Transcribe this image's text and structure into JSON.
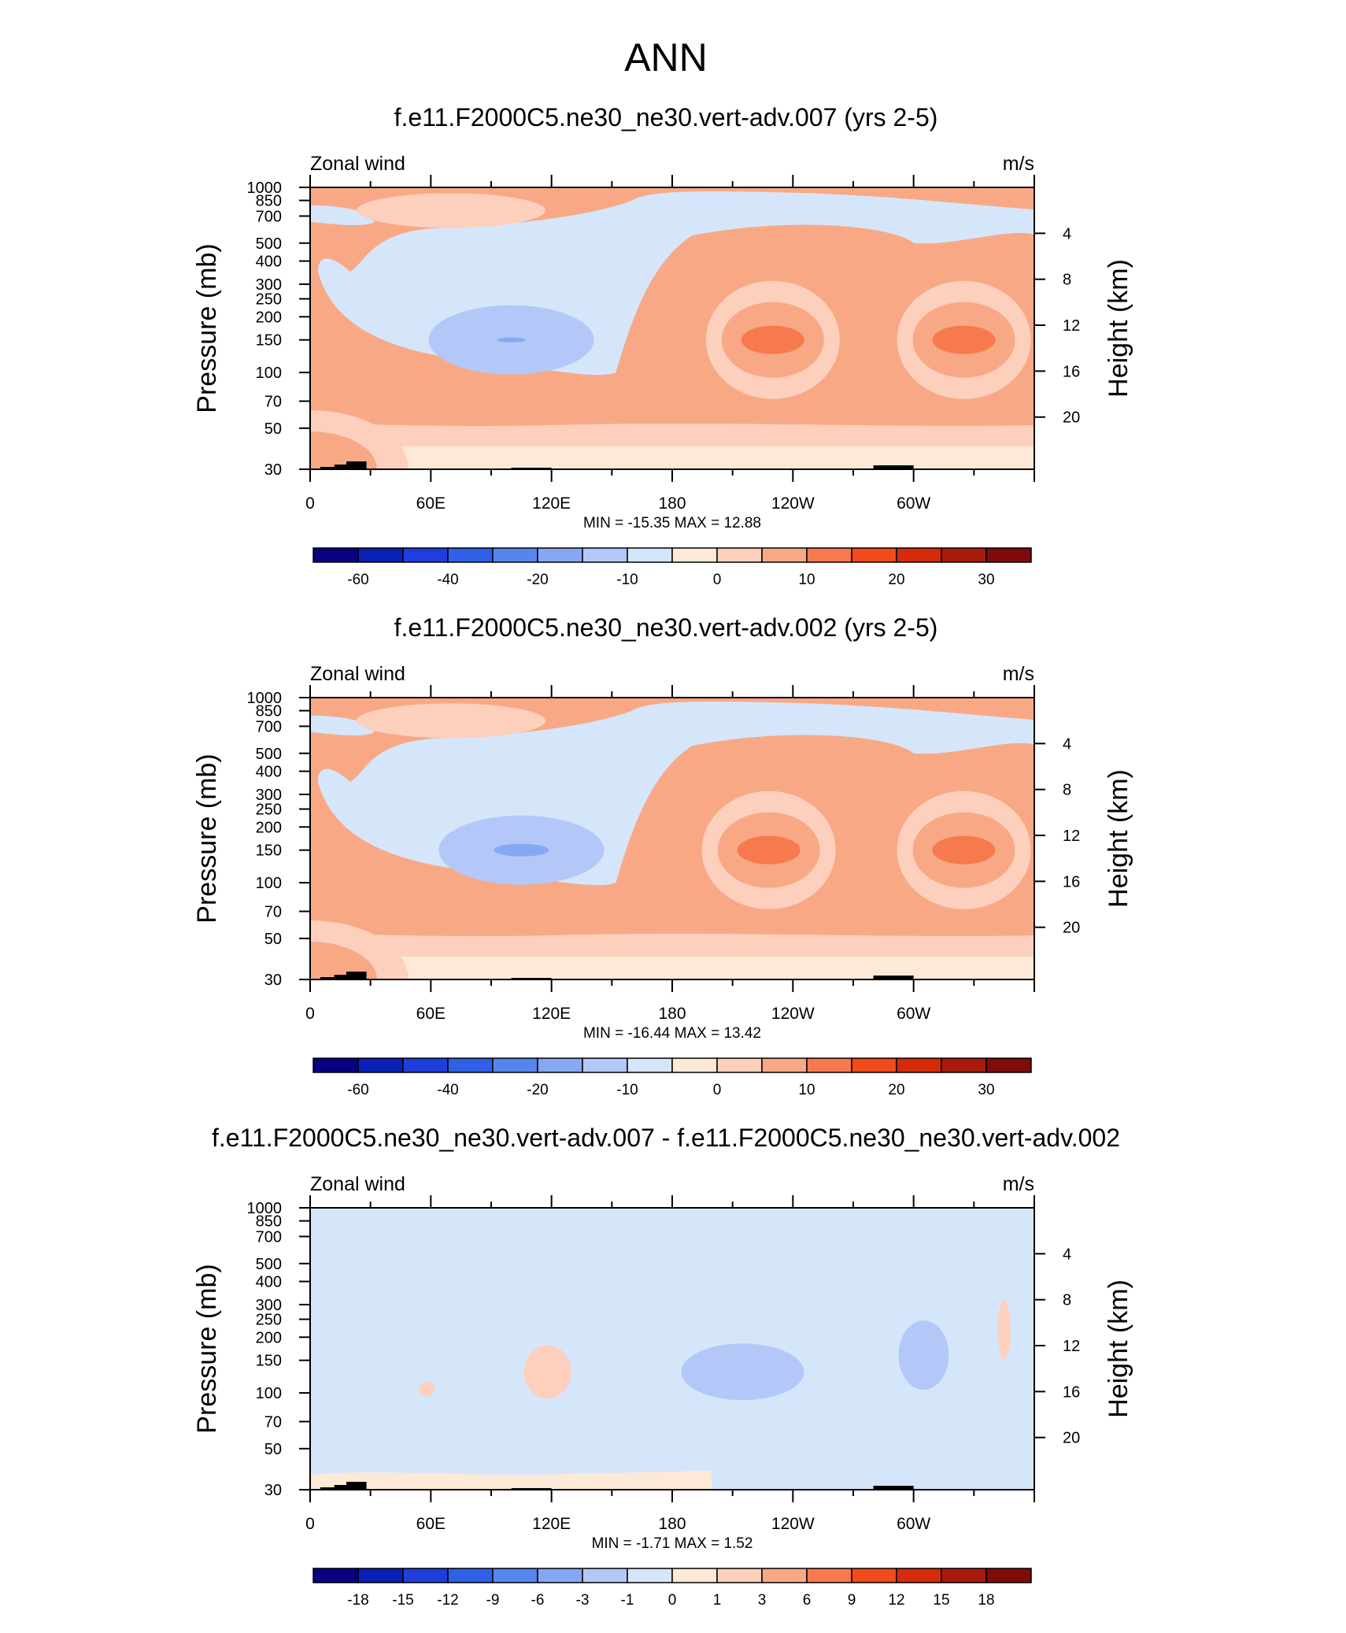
{
  "main_title": "ANN",
  "panels": [
    {
      "title": "f.e11.F2000C5.ne30_ne30.vert-adv.007 (yrs 2-5)",
      "left_label": "Zonal wind",
      "right_label": "m/s",
      "stats": "MIN = -15.35  MAX =  12.88"
    },
    {
      "title": "f.e11.F2000C5.ne30_ne30.vert-adv.002 (yrs 2-5)",
      "left_label": "Zonal wind",
      "right_label": "m/s",
      "stats": "MIN = -16.44  MAX =  13.42"
    },
    {
      "title": "f.e11.F2000C5.ne30_ne30.vert-adv.007 - f.e11.F2000C5.ne30_ne30.vert-adv.002",
      "left_label": "Zonal wind",
      "right_label": "m/s",
      "stats": "MIN =  -1.71  MAX =   1.52"
    }
  ],
  "axis": {
    "ylabel": "Pressure (mb)",
    "ylabel_right": "Height (km)",
    "xticks": [
      "0",
      "60E",
      "120E",
      "180",
      "120W",
      "60W"
    ],
    "pressure_ticks": [
      "30",
      "50",
      "70",
      "100",
      "150",
      "200",
      "250",
      "300",
      "400",
      "500",
      "700",
      "850",
      "1000"
    ],
    "height_ticks": [
      "20",
      "16",
      "12",
      "8",
      "4"
    ]
  },
  "colorbars": [
    {
      "labels": [
        "-60",
        "-40",
        "-20",
        "-10",
        "0",
        "10",
        "20",
        "30"
      ]
    },
    {
      "labels": [
        "-60",
        "-40",
        "-20",
        "-10",
        "0",
        "10",
        "20",
        "30"
      ]
    },
    {
      "labels": [
        "-18",
        "-15",
        "-12",
        "-9",
        "-6",
        "-3",
        "-1",
        "0",
        "1",
        "3",
        "6",
        "9",
        "12",
        "15",
        "18"
      ]
    }
  ],
  "colors": {
    "palette": [
      "#08007f",
      "#0a1fb4",
      "#1e3ede",
      "#2f60e6",
      "#5586ee",
      "#86a8f4",
      "#b3c8f8",
      "#d5e6fb",
      "#fde9d8",
      "#fcd0bc",
      "#f9a886",
      "#f67a4e",
      "#f14a1b",
      "#d52b0a",
      "#a81b0c",
      "#7f0b0b"
    ],
    "background_panel": "#fde9d8"
  },
  "chart_data": [
    {
      "type": "heatmap",
      "title": "f.e11.F2000C5.ne30_ne30.vert-adv.007 (yrs 2-5)",
      "variable": "Zonal wind",
      "units": "m/s",
      "x": "longitude 0-360",
      "y": "pressure 1000-30 mb (log)",
      "min": -15.35,
      "max": 12.88,
      "levels": [
        -70,
        -60,
        -50,
        -40,
        -30,
        -20,
        -15,
        -10,
        -5,
        0,
        5,
        10,
        15,
        20,
        25,
        30,
        35
      ],
      "features": [
        {
          "lon": 0,
          "p": 30,
          "value": 10
        },
        {
          "lon": 100,
          "p": 150,
          "value": -10
        },
        {
          "lon": 100,
          "p": 150,
          "value": -15
        },
        {
          "lon": 230,
          "p": 150,
          "value": 10
        },
        {
          "lon": 230,
          "p": 150,
          "value": 12
        },
        {
          "lon": 325,
          "p": 150,
          "value": 10
        },
        {
          "lon": 325,
          "p": 150,
          "value": 12
        },
        {
          "lon": 70,
          "p": 750,
          "value": 5
        }
      ]
    },
    {
      "type": "heatmap",
      "title": "f.e11.F2000C5.ne30_ne30.vert-adv.002 (yrs 2-5)",
      "variable": "Zonal wind",
      "units": "m/s",
      "x": "longitude 0-360",
      "y": "pressure 1000-30 mb (log)",
      "min": -16.44,
      "max": 13.42,
      "levels": [
        -70,
        -60,
        -50,
        -40,
        -30,
        -20,
        -15,
        -10,
        -5,
        0,
        5,
        10,
        15,
        20,
        25,
        30,
        35
      ],
      "features": [
        {
          "lon": 0,
          "p": 30,
          "value": 10
        },
        {
          "lon": 105,
          "p": 150,
          "value": -10
        },
        {
          "lon": 105,
          "p": 150,
          "value": -15
        },
        {
          "lon": 228,
          "p": 150,
          "value": 10
        },
        {
          "lon": 228,
          "p": 150,
          "value": 12
        },
        {
          "lon": 325,
          "p": 150,
          "value": 10
        },
        {
          "lon": 325,
          "p": 150,
          "value": 12
        },
        {
          "lon": 70,
          "p": 750,
          "value": 5
        }
      ]
    },
    {
      "type": "heatmap",
      "title": "f.e11.F2000C5.ne30_ne30.vert-adv.007 - f.e11.F2000C5.ne30_ne30.vert-adv.002",
      "variable": "Zonal wind",
      "units": "m/s",
      "x": "longitude 0-360",
      "y": "pressure 1000-30 mb (log)",
      "min": -1.71,
      "max": 1.52,
      "levels": [
        -21,
        -18,
        -15,
        -12,
        -9,
        -6,
        -3,
        -1,
        0,
        1,
        3,
        6,
        9,
        12,
        15,
        18,
        21
      ],
      "features": [
        {
          "lon": 0,
          "p": 30,
          "value": -0.5
        },
        {
          "lon": 215,
          "p": 130,
          "value": -1
        },
        {
          "lon": 305,
          "p": 150,
          "value": -1
        },
        {
          "lon": 118,
          "p": 130,
          "value": 0.5
        },
        {
          "lon": 345,
          "p": 200,
          "value": 0.5
        }
      ]
    }
  ]
}
